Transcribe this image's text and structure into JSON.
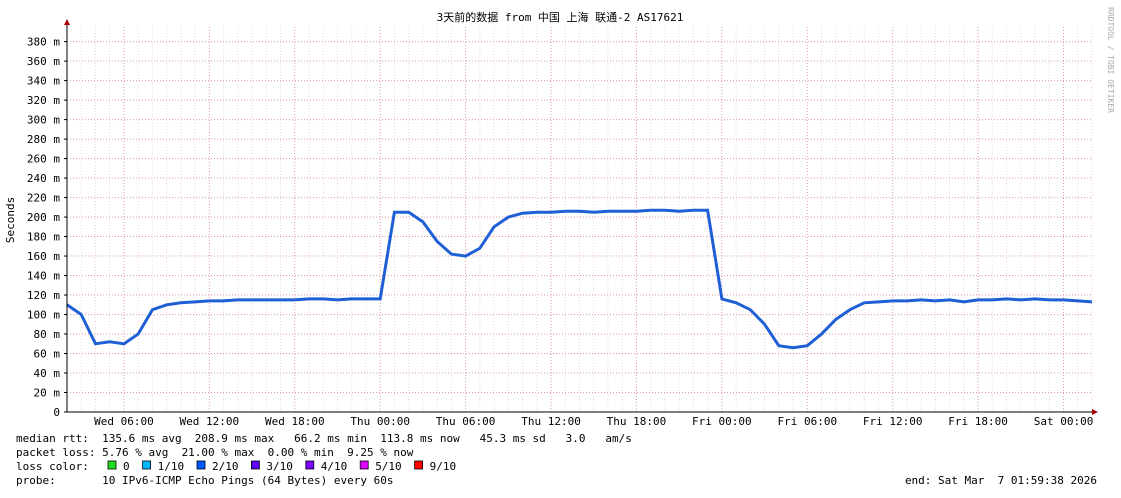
{
  "chart_data": {
    "type": "line",
    "title": "3天前的数据 from 中国 上海 联通-2 AS17621",
    "y_label": "Seconds",
    "side_text": "RRDTOOL / TOBI OETIKER",
    "categories": [
      null,
      null,
      null,
      null,
      "Wed 06:00",
      null,
      null,
      null,
      null,
      null,
      "Wed 12:00",
      null,
      null,
      null,
      null,
      null,
      "Wed 18:00",
      null,
      null,
      null,
      null,
      null,
      "Thu 00:00",
      null,
      null,
      null,
      null,
      null,
      "Thu 06:00",
      null,
      null,
      null,
      null,
      null,
      "Thu 12:00",
      null,
      null,
      null,
      null,
      null,
      "Thu 18:00",
      null,
      null,
      null,
      null,
      null,
      "Fri 00:00",
      null,
      null,
      null,
      null,
      null,
      "Fri 06:00",
      null,
      null,
      null,
      null,
      null,
      "Fri 12:00",
      null,
      null,
      null,
      null,
      null,
      "Fri 18:00",
      null,
      null,
      null,
      null,
      null,
      "Sat 00:00",
      null,
      null
    ],
    "series": [
      {
        "name": "median rtt",
        "color": "#1f5fd6",
        "values": [
          110,
          100,
          70,
          72,
          70,
          80,
          105,
          110,
          112,
          113,
          114,
          114,
          115,
          115,
          115,
          115,
          115,
          116,
          116,
          115,
          116,
          116,
          116,
          205,
          205,
          195,
          175,
          162,
          160,
          168,
          190,
          200,
          204,
          205,
          205,
          206,
          206,
          205,
          206,
          206,
          206,
          207,
          207,
          206,
          207,
          207,
          116,
          112,
          105,
          90,
          68,
          66,
          68,
          80,
          95,
          105,
          112,
          113,
          114,
          114,
          115,
          114,
          115,
          113,
          115,
          115,
          116,
          115,
          116,
          115,
          115,
          114,
          113
        ]
      }
    ],
    "ylim": [
      0,
      395
    ],
    "yticks": [
      0,
      {
        "value": 20,
        "label": "20 m"
      },
      {
        "value": 40,
        "label": "40 m"
      },
      {
        "value": 60,
        "label": "60 m"
      },
      {
        "value": 80,
        "label": "80 m"
      },
      {
        "value": 100,
        "label": "100 m"
      },
      {
        "value": 120,
        "label": "120 m"
      },
      {
        "value": 140,
        "label": "140 m"
      },
      {
        "value": 160,
        "label": "160 m"
      },
      {
        "value": 180,
        "label": "180 m"
      },
      {
        "value": 200,
        "label": "200 m"
      },
      {
        "value": 220,
        "label": "220 m"
      },
      {
        "value": 240,
        "label": "240 m"
      },
      {
        "value": 260,
        "label": "260 m"
      },
      {
        "value": 280,
        "label": "280 m"
      },
      {
        "value": 300,
        "label": "300 m"
      },
      {
        "value": 320,
        "label": "320 m"
      },
      {
        "value": 340,
        "label": "340 m"
      },
      {
        "value": 360,
        "label": "360 m"
      },
      {
        "value": 380,
        "label": "380 m"
      }
    ],
    "grid": true,
    "footer": {
      "median_rtt": "median rtt:  135.6 ms avg  208.9 ms max   66.2 ms min  113.8 ms now   45.3 ms sd   3.0   am/s",
      "packet_loss": "packet loss: 5.76 % avg  21.00 % max  0.00 % min  9.25 % now",
      "loss_color_label": "loss color:",
      "loss_colors": [
        {
          "label": "0",
          "color": "#22dd22"
        },
        {
          "label": "1/10",
          "color": "#00b8ff"
        },
        {
          "label": "2/10",
          "color": "#0059ff"
        },
        {
          "label": "3/10",
          "color": "#5e00ff"
        },
        {
          "label": "4/10",
          "color": "#7e00ff"
        },
        {
          "label": "5/10",
          "color": "#dd00ff"
        },
        {
          "label": "9/10",
          "color": "#ff0000"
        }
      ],
      "probe": "probe:       10 IPv6-ICMP Echo Pings (64 Bytes) every 60s",
      "end": "end: Sat Mar  7 01:59:38 2026"
    }
  }
}
